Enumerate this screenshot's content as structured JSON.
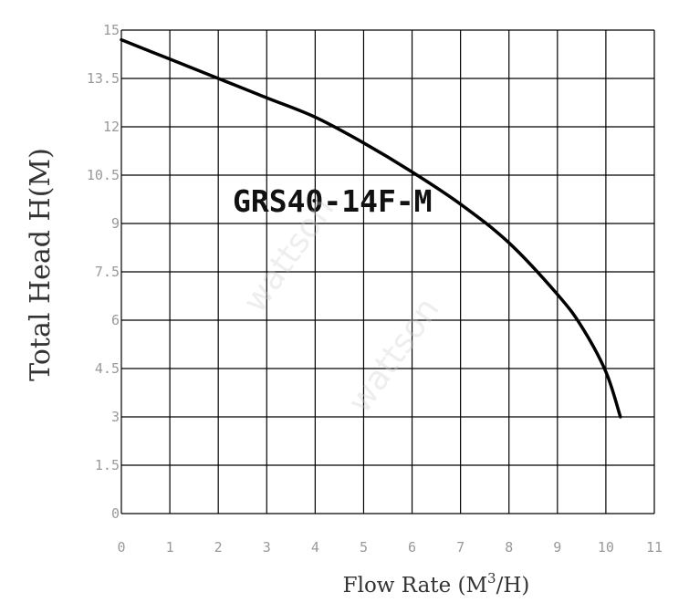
{
  "chart_data": {
    "type": "line",
    "title": "GRS40-14F-M",
    "xlabel_prefix": "Flow Rate (M",
    "xlabel_sup": "3",
    "xlabel_suffix": "/H)",
    "ylabel": "Total Head H(M)",
    "watermark": "wattson",
    "xlim": [
      0,
      11
    ],
    "ylim": [
      0,
      15
    ],
    "x_ticks": [
      0,
      1,
      2,
      3,
      4,
      5,
      6,
      7,
      8,
      9,
      10,
      11
    ],
    "y_ticks": [
      "0",
      "1.5",
      "3",
      "4.5",
      "6",
      "7.5",
      "9",
      "10.5",
      "12",
      "13.5",
      "15"
    ],
    "grid": true,
    "line_color": "#000000",
    "series": [
      {
        "x": [
          0,
          1,
          2,
          3,
          4,
          5,
          6,
          7,
          8,
          9,
          9.5,
          10,
          10.3
        ],
        "y": [
          14.7,
          14.1,
          13.5,
          12.9,
          12.3,
          11.5,
          10.6,
          9.6,
          8.4,
          6.8,
          5.8,
          4.4,
          3.0
        ]
      }
    ]
  }
}
